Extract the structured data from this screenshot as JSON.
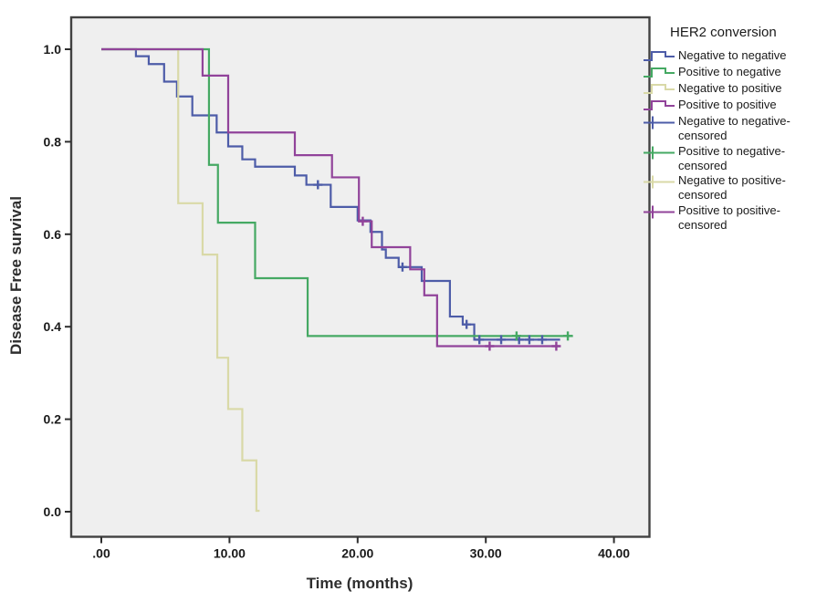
{
  "figure": {
    "x_axis_title": "Time (months)",
    "y_axis_title": "Disease Free survival"
  },
  "chart_data": {
    "type": "line",
    "subtype": "kaplan_meier_step_survival",
    "title": "",
    "xlabel": "Time (months)",
    "ylabel": "Disease Free survival",
    "xlim": [
      0,
      40
    ],
    "ylim": [
      0.0,
      1.0
    ],
    "grid": false,
    "plot_bg": "#efefef",
    "frame_color": "#414141",
    "x_ticks": [
      {
        "v": 0,
        "label": ".00"
      },
      {
        "v": 10,
        "label": "10.00"
      },
      {
        "v": 20,
        "label": "20.00"
      },
      {
        "v": 30,
        "label": "30.00"
      },
      {
        "v": 40,
        "label": "40.00"
      }
    ],
    "y_ticks": [
      {
        "v": 0.0,
        "label": "0.0"
      },
      {
        "v": 0.2,
        "label": "0.2"
      },
      {
        "v": 0.4,
        "label": "0.4"
      },
      {
        "v": 0.6,
        "label": "0.6"
      },
      {
        "v": 0.8,
        "label": "0.8"
      },
      {
        "v": 1.0,
        "label": "1.0"
      }
    ],
    "legend": {
      "title": "HER2 conversion",
      "position": "right",
      "items": [
        {
          "label": "Negative to negative",
          "type": "step",
          "color": "#4d5ca8"
        },
        {
          "label": "Positive to negative",
          "type": "step",
          "color": "#45a963"
        },
        {
          "label": "Negative to positive",
          "type": "step",
          "color": "#d9d9a7"
        },
        {
          "label": "Positive to positive",
          "type": "step",
          "color": "#91439a"
        },
        {
          "label": "Negative to negative-censored",
          "type": "censored",
          "color": "#4d5ca8"
        },
        {
          "label": "Positive to negative-censored",
          "type": "censored",
          "color": "#45a963"
        },
        {
          "label": "Negative to positive-censored",
          "type": "censored",
          "color": "#d9d9a7"
        },
        {
          "label": "Positive to positive-censored",
          "type": "censored",
          "color": "#91439a"
        }
      ]
    },
    "series": [
      {
        "name": "Negative to negative",
        "color": "#4d5ca8",
        "start_survival": 1.0,
        "steps": [
          [
            2.7,
            0.985
          ],
          [
            3.7,
            0.968
          ],
          [
            4.9,
            0.93
          ],
          [
            5.9,
            0.898
          ],
          [
            7.1,
            0.857
          ],
          [
            9.0,
            0.82
          ],
          [
            9.9,
            0.79
          ],
          [
            11.0,
            0.762
          ],
          [
            12.0,
            0.746
          ],
          [
            15.1,
            0.727
          ],
          [
            16.0,
            0.707
          ],
          [
            17.9,
            0.659
          ],
          [
            20.0,
            0.63
          ],
          [
            21.0,
            0.605
          ],
          [
            21.9,
            0.567
          ],
          [
            22.2,
            0.549
          ],
          [
            23.2,
            0.529
          ],
          [
            25.0,
            0.499
          ],
          [
            27.2,
            0.422
          ],
          [
            28.2,
            0.405
          ],
          [
            29.1,
            0.372
          ]
        ],
        "end_time": 35.8,
        "censors": [
          [
            16.9,
            0.707
          ],
          [
            23.5,
            0.529
          ],
          [
            28.5,
            0.405
          ],
          [
            29.5,
            0.372
          ],
          [
            31.2,
            0.372
          ],
          [
            32.6,
            0.372
          ],
          [
            33.4,
            0.372
          ],
          [
            34.4,
            0.372
          ]
        ]
      },
      {
        "name": "Positive to negative",
        "color": "#45a963",
        "start_survival": 1.0,
        "steps": [
          [
            8.4,
            0.75
          ],
          [
            9.1,
            0.625
          ],
          [
            12.0,
            0.505
          ],
          [
            16.1,
            0.38
          ]
        ],
        "end_time": 36.8,
        "censors": [
          [
            32.4,
            0.38
          ],
          [
            36.4,
            0.38
          ]
        ]
      },
      {
        "name": "Negative to positive",
        "color": "#d9d9a7",
        "start_survival": 1.0,
        "steps": [
          [
            6.0,
            0.667
          ],
          [
            7.9,
            0.556
          ],
          [
            9.05,
            0.333
          ],
          [
            9.9,
            0.222
          ],
          [
            11.0,
            0.111
          ],
          [
            12.1,
            0.002
          ]
        ],
        "end_time": 12.35,
        "censors": []
      },
      {
        "name": "Positive to positive",
        "color": "#91439a",
        "start_survival": 1.0,
        "steps": [
          [
            7.9,
            0.943
          ],
          [
            9.9,
            0.82
          ],
          [
            15.1,
            0.771
          ],
          [
            18.0,
            0.723
          ],
          [
            20.1,
            0.628
          ],
          [
            21.1,
            0.572
          ],
          [
            24.1,
            0.524
          ],
          [
            25.2,
            0.468
          ],
          [
            26.2,
            0.358
          ]
        ],
        "end_time": 35.7,
        "censors": [
          [
            20.4,
            0.628
          ],
          [
            30.3,
            0.358
          ],
          [
            35.5,
            0.358
          ]
        ]
      }
    ]
  }
}
